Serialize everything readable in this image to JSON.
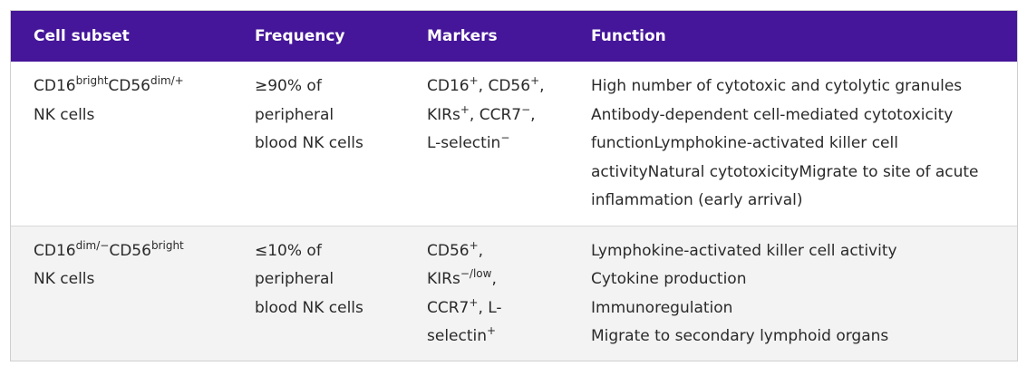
{
  "table": {
    "headers": [
      "Cell subset",
      "Frequency",
      "Markers",
      "Function"
    ],
    "header_color": "#451699",
    "rows": [
      {
        "subset": {
          "a": "CD16",
          "a_sup": "bright",
          "b": "CD56",
          "b_sup": "dim/+",
          "c": "NK cells"
        },
        "frequency": [
          "≥90% of",
          "peripheral",
          "blood NK cells"
        ],
        "markers": {
          "m1": "CD16",
          "m1_sup": "+",
          "m2": ", CD56",
          "m2_sup": "+",
          "m2_end": ",",
          "m3": "KIRs",
          "m3_sup": "+",
          "m4": ", CCR7",
          "m4_sup": "−",
          "m4_end": ",",
          "m5": "L-selectin",
          "m5_sup": "−"
        },
        "function": [
          "High number of cytotoxic and cytolytic granules",
          "Antibody-dependent cell-mediated cytotoxicity",
          "functionLymphokine-activated killer cell",
          "activityNatural cytotoxicityMigrate to site of acute",
          "inflammation (early arrival)"
        ]
      },
      {
        "subset": {
          "a": "CD16",
          "a_sup": "dim/−",
          "b": "CD56",
          "b_sup": "bright",
          "c": "NK cells"
        },
        "frequency": [
          "≤10% of",
          "peripheral",
          "blood NK cells"
        ],
        "markers": {
          "m1": "CD56",
          "m1_sup": "+",
          "m1_end": ",",
          "m2": "KIRs",
          "m2_sup": "−/low",
          "m2_end": ",",
          "m3": "CCR7",
          "m3_sup": "+",
          "m3_end": ", L-",
          "m4": "selectin",
          "m4_sup": "+"
        },
        "function": [
          "Lymphokine-activated killer cell activity",
          "Cytokine production",
          "Immunoregulation",
          "Migrate to secondary lymphoid organs"
        ]
      }
    ]
  }
}
